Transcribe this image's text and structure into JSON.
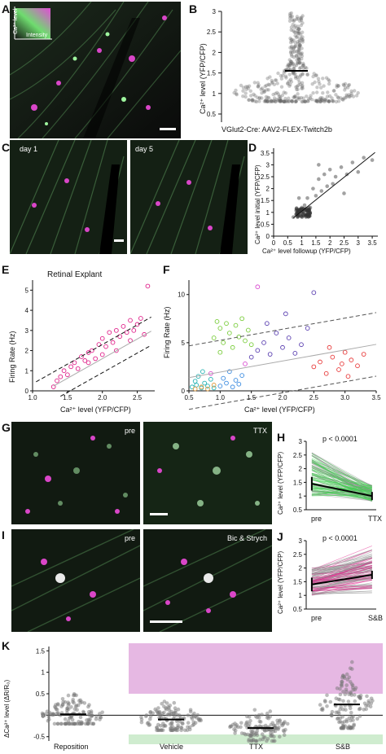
{
  "panels": {
    "A": {
      "letter": "A",
      "legend": {
        "y_label": "Ca²⁺ level",
        "x_label": "Intensity"
      }
    },
    "B": {
      "letter": "B",
      "caption": "VGlut2-Cre: AAV2-FLEX-Twitch2b",
      "y_label": "Ca²⁺ level (YFP/CFP)",
      "yticks": [
        "0.5",
        "1",
        "1.5",
        "2",
        "2.5",
        "3"
      ]
    },
    "C": {
      "letter": "C",
      "left_tag": "day 1",
      "right_tag": "day 5"
    },
    "D": {
      "letter": "D",
      "y_label": "Ca²⁺ level initial (YFP/CFP)",
      "x_label": "Ca²⁺ level followup (YFP/CFP)",
      "xticks": [
        "0",
        "0.5",
        "1",
        "1.5",
        "2",
        "2.5",
        "3",
        "3.5"
      ],
      "yticks": [
        "0",
        "0.5",
        "1",
        "1.5",
        "2",
        "2.5",
        "3",
        "3.5"
      ]
    },
    "E": {
      "letter": "E",
      "title": "Retinal Explant",
      "y_label": "Firing Rate (Hz)",
      "x_label": "Ca²⁺ level (YFP/CFP)",
      "xticks": [
        "1.0",
        "1.5",
        "2.0",
        "2.5"
      ],
      "yticks": [
        "0",
        "1",
        "2",
        "3",
        "4",
        "5"
      ]
    },
    "F": {
      "letter": "F",
      "y_label": "Firing Rate (Hz)",
      "x_label": "Ca²⁺ level (YFP/CFP)",
      "xticks": [
        "0.5",
        "1.0",
        "1.5",
        "2.0",
        "2.5",
        "3.0",
        "3.5"
      ],
      "yticks": [
        "0",
        "5",
        "10"
      ]
    },
    "G": {
      "letter": "G",
      "left_tag": "pre",
      "right_tag": "TTX"
    },
    "H": {
      "letter": "H",
      "pvalue": "p < 0.0001",
      "y_label": "Ca²⁺ level (YFP/CFP)",
      "x_labels": [
        "pre",
        "TTX"
      ],
      "yticks": [
        "0.5",
        "1",
        "1.5",
        "2",
        "2.5",
        "3"
      ]
    },
    "I": {
      "letter": "I",
      "left_tag": "pre",
      "right_tag": "Bic & Strych"
    },
    "J": {
      "letter": "J",
      "pvalue": "p < 0.0001",
      "y_label": "Ca²⁺ level (YFP/CFP)",
      "x_labels": [
        "pre",
        "S&B"
      ],
      "yticks": [
        "0.5",
        "1",
        "1.5",
        "2",
        "2.5",
        "3"
      ]
    },
    "K": {
      "letter": "K",
      "y_label": "ΔCa²⁺ level (ΔR/R₀)",
      "yticks": [
        "1.5",
        "1",
        "0.5",
        "0",
        "-0.5"
      ],
      "groups": [
        "Reposition",
        "Vehicle",
        "TTX",
        "S&B"
      ]
    }
  },
  "colors": {
    "green": "#3bd24a",
    "magenta": "#e0218a",
    "gray": "#8f8f8f",
    "pink_band": "#e6b8e3",
    "green_band": "#cfeccf"
  },
  "chart_data": [
    {
      "panel": "E",
      "type": "scatter",
      "title": "Retinal Explant",
      "xlabel": "Ca²⁺ level (YFP/CFP)",
      "ylabel": "Firing Rate (Hz)",
      "xlim": [
        1.0,
        2.75
      ],
      "ylim": [
        0,
        5.5
      ],
      "points": [
        [
          1.3,
          0.2
        ],
        [
          1.35,
          0.5
        ],
        [
          1.4,
          0.7
        ],
        [
          1.45,
          1.0
        ],
        [
          1.5,
          0.8
        ],
        [
          1.55,
          1.2
        ],
        [
          1.6,
          1.4
        ],
        [
          1.65,
          1.1
        ],
        [
          1.7,
          1.7
        ],
        [
          1.75,
          1.5
        ],
        [
          1.8,
          1.9
        ],
        [
          1.85,
          2.0
        ],
        [
          1.9,
          1.6
        ],
        [
          1.95,
          2.3
        ],
        [
          2.0,
          2.6
        ],
        [
          2.05,
          2.2
        ],
        [
          2.1,
          2.9
        ],
        [
          2.15,
          2.4
        ],
        [
          2.2,
          3.0
        ],
        [
          2.25,
          2.7
        ],
        [
          2.3,
          3.2
        ],
        [
          2.35,
          2.9
        ],
        [
          2.4,
          3.5
        ],
        [
          2.45,
          3.0
        ],
        [
          2.5,
          3.3
        ],
        [
          2.55,
          3.6
        ],
        [
          2.6,
          2.8
        ],
        [
          2.65,
          5.2
        ],
        [
          2.0,
          1.8
        ],
        [
          2.2,
          2.0
        ],
        [
          1.8,
          1.4
        ],
        [
          2.4,
          2.5
        ]
      ],
      "fit": {
        "slope": 1.95,
        "intercept": -2.3
      },
      "band_offset": 0.7
    },
    {
      "panel": "F",
      "type": "scatter",
      "xlabel": "Ca²⁺ level (YFP/CFP)",
      "ylabel": "Firing Rate (Hz)",
      "xlim": [
        0.5,
        3.5
      ],
      "ylim": [
        0,
        11.5
      ],
      "series": [
        {
          "color": "#27b3b3",
          "points": [
            [
              0.55,
              0.4
            ],
            [
              0.6,
              1.0
            ],
            [
              0.62,
              0.6
            ],
            [
              0.65,
              1.5
            ],
            [
              0.7,
              0.3
            ],
            [
              0.72,
              2.0
            ],
            [
              0.75,
              0.8
            ],
            [
              0.8,
              0.5
            ],
            [
              0.85,
              1.2
            ],
            [
              0.9,
              0.3
            ]
          ]
        },
        {
          "color": "#3a8be0",
          "points": [
            [
              1.0,
              0.5
            ],
            [
              1.05,
              1.3
            ],
            [
              1.1,
              0.8
            ],
            [
              1.15,
              2.0
            ],
            [
              1.2,
              0.4
            ],
            [
              1.25,
              1.1
            ],
            [
              1.3,
              0.7
            ],
            [
              1.35,
              1.6
            ]
          ]
        },
        {
          "color": "#7acd3c",
          "points": [
            [
              0.9,
              5.5
            ],
            [
              1.0,
              6.5
            ],
            [
              1.05,
              5.0
            ],
            [
              1.1,
              7.0
            ],
            [
              1.15,
              6.0
            ],
            [
              1.2,
              4.5
            ],
            [
              1.25,
              6.8
            ],
            [
              1.3,
              5.6
            ],
            [
              1.35,
              7.5
            ],
            [
              1.4,
              5.2
            ],
            [
              1.45,
              6.3
            ],
            [
              1.5,
              4.8
            ],
            [
              1.0,
              4.0
            ],
            [
              0.95,
              7.2
            ]
          ]
        },
        {
          "color": "#5a3fb0",
          "points": [
            [
              1.5,
              3.5
            ],
            [
              1.6,
              4.2
            ],
            [
              1.7,
              5.0
            ],
            [
              1.8,
              3.8
            ],
            [
              1.9,
              6.0
            ],
            [
              2.0,
              4.5
            ],
            [
              2.1,
              5.5
            ],
            [
              2.2,
              3.9
            ],
            [
              2.3,
              4.8
            ],
            [
              2.4,
              6.5
            ],
            [
              2.5,
              10.2
            ],
            [
              1.75,
              7.0
            ],
            [
              2.05,
              8.0
            ]
          ]
        },
        {
          "color": "#e83c3c",
          "points": [
            [
              2.5,
              2.5
            ],
            [
              2.6,
              3.0
            ],
            [
              2.7,
              1.8
            ],
            [
              2.8,
              3.5
            ],
            [
              2.9,
              2.2
            ],
            [
              3.0,
              4.0
            ],
            [
              3.05,
              1.5
            ],
            [
              3.1,
              3.2
            ],
            [
              3.2,
              2.6
            ],
            [
              3.3,
              3.8
            ],
            [
              2.75,
              4.5
            ],
            [
              2.95,
              2.8
            ]
          ]
        },
        {
          "color": "#e09a3c",
          "points": [
            [
              0.6,
              0.2
            ],
            [
              0.7,
              0.4
            ],
            [
              0.8,
              0.2
            ],
            [
              0.9,
              0.6
            ]
          ]
        },
        {
          "color": "#d94bd0",
          "points": [
            [
              1.6,
              10.8
            ],
            [
              0.85,
              1.8
            ],
            [
              1.4,
              2.8
            ]
          ]
        }
      ],
      "fit": {
        "slope": 1.15,
        "intercept": 0.8
      },
      "band_offset": 3.3
    },
    {
      "panel": "D",
      "type": "scatter",
      "xlabel": "Ca²⁺ level followup (YFP/CFP)",
      "ylabel": "Ca²⁺ level initial (YFP/CFP)",
      "xlim": [
        0,
        3.7
      ],
      "ylim": [
        0,
        3.7
      ],
      "points": [
        [
          0.7,
          0.8
        ],
        [
          0.8,
          0.9
        ],
        [
          0.85,
          1.0
        ],
        [
          0.9,
          0.85
        ],
        [
          0.95,
          1.1
        ],
        [
          1.0,
          0.95
        ],
        [
          1.0,
          1.2
        ],
        [
          1.05,
          1.0
        ],
        [
          1.1,
          1.3
        ],
        [
          1.15,
          1.1
        ],
        [
          1.2,
          1.6
        ],
        [
          1.3,
          1.2
        ],
        [
          1.4,
          2.0
        ],
        [
          1.5,
          1.7
        ],
        [
          1.6,
          2.4
        ],
        [
          1.7,
          1.9
        ],
        [
          1.8,
          2.6
        ],
        [
          1.9,
          2.1
        ],
        [
          2.0,
          2.8
        ],
        [
          2.1,
          2.2
        ],
        [
          2.2,
          2.5
        ],
        [
          2.4,
          2.9
        ],
        [
          2.6,
          2.6
        ],
        [
          2.8,
          3.1
        ],
        [
          3.0,
          2.7
        ],
        [
          3.2,
          3.3
        ],
        [
          3.5,
          3.2
        ],
        [
          2.5,
          1.8
        ],
        [
          1.6,
          3.0
        ],
        [
          0.9,
          1.6
        ]
      ],
      "fit": {
        "slope": 0.95,
        "intercept": 0.1
      }
    },
    {
      "panel": "K",
      "type": "scatter",
      "ylabel": "ΔCa²⁺ level (ΔR/R₀)",
      "categories": [
        "Reposition",
        "Vehicle",
        "TTX",
        "S&B"
      ],
      "ylim": [
        -0.6,
        1.6
      ],
      "medians": [
        0.02,
        -0.1,
        -0.3,
        0.25
      ]
    }
  ]
}
